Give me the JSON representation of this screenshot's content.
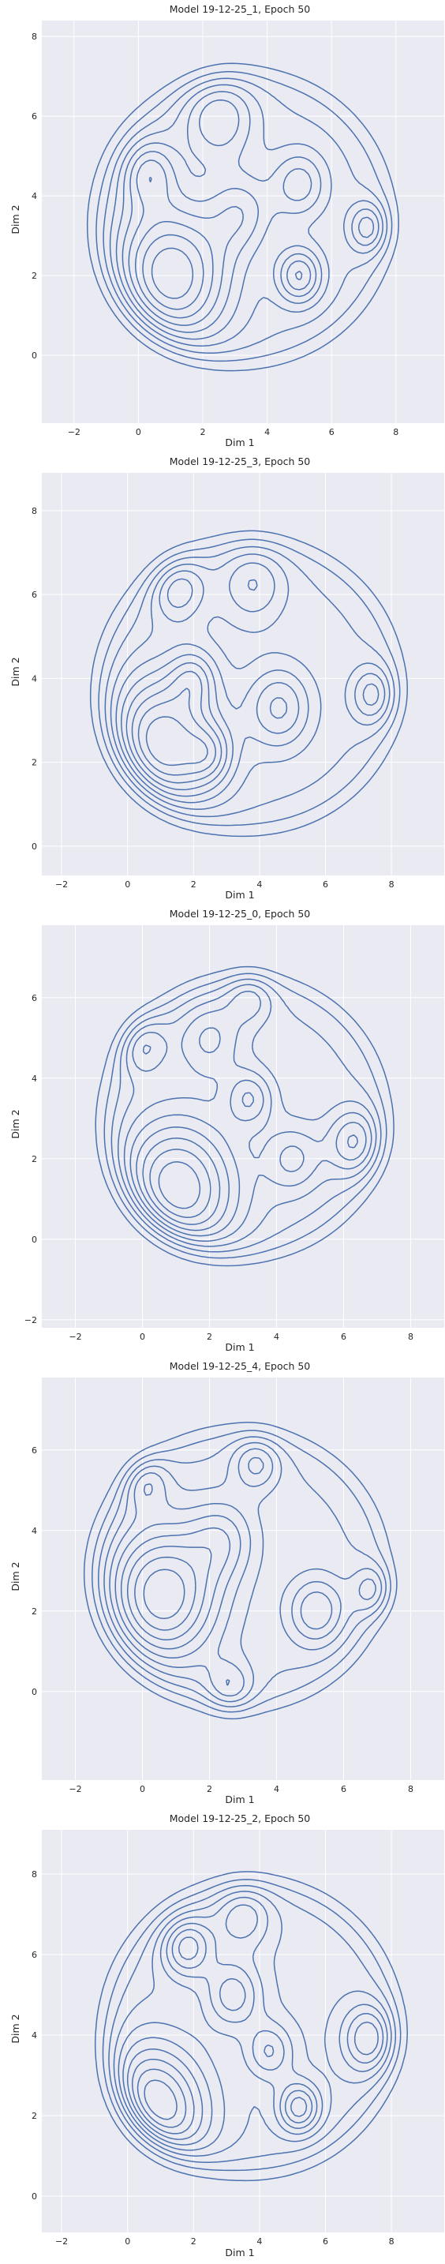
{
  "chart_data": [
    {
      "type": "kde-contour",
      "title": "Model 19-12-25_1, Epoch 50",
      "xlabel": "Dim 1",
      "ylabel": "Dim 2",
      "xlim": [
        -3,
        9.5
      ],
      "ylim": [
        -1.7,
        8.4
      ],
      "xticks": [
        -2,
        0,
        2,
        4,
        6,
        8
      ],
      "yticks": [
        0,
        2,
        4,
        6,
        8
      ],
      "grid": true,
      "color": "#4c72b0",
      "support": {
        "x": [
          -1.7,
          8.2
        ],
        "y": [
          -0.5,
          7.4
        ]
      },
      "modes": [
        {
          "x": 1.0,
          "y": 2.0,
          "w": 1.6,
          "s": 1.3
        },
        {
          "x": 5.0,
          "y": 2.0,
          "w": 1.0,
          "s": 0.5
        },
        {
          "x": 7.2,
          "y": 3.2,
          "w": 0.9,
          "s": 0.45
        },
        {
          "x": 0.3,
          "y": 4.6,
          "w": 0.8,
          "s": 0.6
        },
        {
          "x": 2.5,
          "y": 6.0,
          "w": 0.8,
          "s": 0.8
        },
        {
          "x": 5.0,
          "y": 4.3,
          "w": 0.7,
          "s": 0.6
        },
        {
          "x": 3.2,
          "y": 3.6,
          "w": 0.6,
          "s": 0.7
        }
      ]
    },
    {
      "type": "kde-contour",
      "title": "Model 19-12-25_3, Epoch 50",
      "xlabel": "Dim 1",
      "ylabel": "Dim 2",
      "xlim": [
        -2.6,
        9.6
      ],
      "ylim": [
        -0.7,
        8.9
      ],
      "xticks": [
        -2,
        0,
        2,
        4,
        6,
        8
      ],
      "yticks": [
        0,
        2,
        4,
        6,
        8
      ],
      "grid": true,
      "color": "#4c72b0",
      "support": {
        "x": [
          -1.2,
          8.6
        ],
        "y": [
          0.1,
          7.6
        ]
      },
      "modes": [
        {
          "x": 1.0,
          "y": 2.4,
          "w": 1.6,
          "s": 1.2
        },
        {
          "x": 1.5,
          "y": 6.2,
          "w": 0.8,
          "s": 0.6
        },
        {
          "x": 2.0,
          "y": 4.0,
          "w": 0.6,
          "s": 0.5
        },
        {
          "x": 4.6,
          "y": 3.3,
          "w": 0.8,
          "s": 0.7
        },
        {
          "x": 7.5,
          "y": 3.6,
          "w": 0.8,
          "s": 0.5
        },
        {
          "x": 3.8,
          "y": 6.3,
          "w": 0.6,
          "s": 0.7
        },
        {
          "x": 2.5,
          "y": 2.2,
          "w": 0.6,
          "s": 0.5
        }
      ]
    },
    {
      "type": "kde-contour",
      "title": "Model 19-12-25_0, Epoch 50",
      "xlabel": "Dim 1",
      "ylabel": "Dim 2",
      "xlim": [
        -3,
        9
      ],
      "ylim": [
        -2.2,
        7.8
      ],
      "xticks": [
        -2,
        0,
        2,
        4,
        6,
        8
      ],
      "yticks": [
        -2,
        0,
        2,
        4,
        6
      ],
      "grid": true,
      "color": "#4c72b0",
      "support": {
        "x": [
          -1.5,
          7.6
        ],
        "y": [
          -0.7,
          6.8
        ]
      },
      "modes": [
        {
          "x": 1.0,
          "y": 1.2,
          "w": 1.6,
          "s": 1.3
        },
        {
          "x": -0.1,
          "y": 4.9,
          "w": 0.8,
          "s": 0.55
        },
        {
          "x": 3.2,
          "y": 6.1,
          "w": 0.6,
          "s": 0.5
        },
        {
          "x": 3.2,
          "y": 3.5,
          "w": 0.7,
          "s": 0.5
        },
        {
          "x": 6.4,
          "y": 2.4,
          "w": 0.9,
          "s": 0.6
        },
        {
          "x": 4.5,
          "y": 2.0,
          "w": 0.6,
          "s": 0.6
        },
        {
          "x": 2.0,
          "y": 5.0,
          "w": 0.6,
          "s": 0.7
        }
      ]
    },
    {
      "type": "kde-contour",
      "title": "Model 19-12-25_4, Epoch 50",
      "xlabel": "Dim 1",
      "ylabel": "Dim 2",
      "xlim": [
        -3,
        9
      ],
      "ylim": [
        -2.2,
        7.8
      ],
      "xticks": [
        -2,
        0,
        2,
        4,
        6,
        8
      ],
      "yticks": [
        0,
        2,
        4,
        6
      ],
      "grid": true,
      "color": "#4c72b0",
      "support": {
        "x": [
          -1.8,
          7.6
        ],
        "y": [
          -0.7,
          6.8
        ]
      },
      "modes": [
        {
          "x": 0.6,
          "y": 2.4,
          "w": 1.6,
          "s": 1.2
        },
        {
          "x": 0.0,
          "y": 5.3,
          "w": 0.8,
          "s": 0.5
        },
        {
          "x": 3.4,
          "y": 5.7,
          "w": 0.7,
          "s": 0.5
        },
        {
          "x": 7.0,
          "y": 2.5,
          "w": 0.9,
          "s": 0.45
        },
        {
          "x": 5.2,
          "y": 2.0,
          "w": 0.8,
          "s": 0.6
        },
        {
          "x": 2.6,
          "y": 0.0,
          "w": 0.7,
          "s": 0.5
        },
        {
          "x": 2.4,
          "y": 3.8,
          "w": 0.6,
          "s": 0.7
        }
      ]
    },
    {
      "type": "kde-contour",
      "title": "Model 19-12-25_2, Epoch 50",
      "xlabel": "Dim 1",
      "ylabel": "Dim 2",
      "xlim": [
        -2.6,
        9.6
      ],
      "ylim": [
        -0.9,
        9.1
      ],
      "xticks": [
        -2,
        0,
        2,
        4,
        6,
        8
      ],
      "yticks": [
        0,
        2,
        4,
        6,
        8
      ],
      "grid": true,
      "color": "#4c72b0",
      "support": {
        "x": [
          -1.0,
          8.5
        ],
        "y": [
          0.3,
          8.1
        ]
      },
      "modes": [
        {
          "x": 0.6,
          "y": 2.0,
          "w": 1.6,
          "s": 1.2
        },
        {
          "x": 1.8,
          "y": 6.2,
          "w": 0.9,
          "s": 0.55
        },
        {
          "x": 5.2,
          "y": 2.2,
          "w": 0.9,
          "s": 0.45
        },
        {
          "x": 7.4,
          "y": 3.9,
          "w": 0.9,
          "s": 0.6
        },
        {
          "x": 3.2,
          "y": 5.0,
          "w": 0.7,
          "s": 0.6
        },
        {
          "x": 4.3,
          "y": 3.6,
          "w": 0.6,
          "s": 0.5
        },
        {
          "x": 3.5,
          "y": 7.0,
          "w": 0.6,
          "s": 0.6
        }
      ]
    }
  ]
}
